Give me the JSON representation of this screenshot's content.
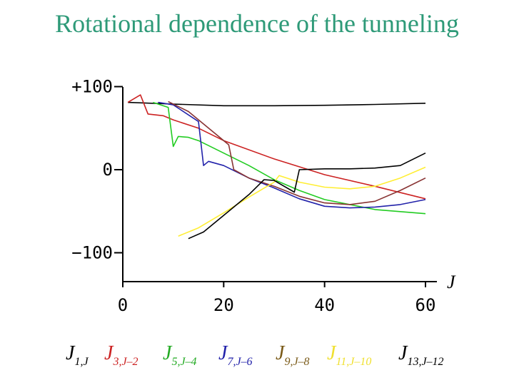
{
  "title": "Rotational dependence of the tunneling",
  "chart_data": {
    "type": "line",
    "xlabel": "J",
    "ylabel": "",
    "xlim": [
      0,
      60
    ],
    "ylim": [
      -135,
      110
    ],
    "x_ticks": [
      0,
      20,
      40,
      60
    ],
    "y_ticks": [
      100,
      0,
      -100
    ],
    "x_tick_labels": [
      "0",
      "20",
      "40",
      "60"
    ],
    "y_tick_labels": [
      "+100",
      "0",
      "−100"
    ],
    "grid": false,
    "series": [
      {
        "color": "#000000",
        "x": [
          1,
          10,
          20,
          30,
          40,
          50,
          60
        ],
        "y": [
          81,
          79,
          77,
          77,
          77.5,
          78.5,
          80
        ]
      },
      {
        "color": "#cc2222",
        "x": [
          1,
          3.5,
          5,
          8,
          10,
          15,
          20,
          30,
          40,
          50,
          60
        ],
        "y": [
          81,
          90,
          67,
          65,
          60,
          50,
          35,
          13,
          -6,
          -20,
          -35
        ]
      },
      {
        "color": "#22cc22",
        "x": [
          6,
          9,
          10,
          11,
          13,
          15,
          20,
          25,
          30,
          35,
          40,
          50,
          60
        ],
        "y": [
          81,
          75,
          28,
          40,
          39,
          35,
          20,
          5,
          -12,
          -25,
          -36,
          -48,
          -53
        ]
      },
      {
        "color": "#2222aa",
        "x": [
          7,
          10,
          15,
          16,
          17,
          20,
          25,
          30,
          35,
          40,
          45,
          50,
          55,
          60
        ],
        "y": [
          81,
          78,
          58,
          5,
          10,
          5,
          -10,
          -22,
          -35,
          -44,
          -46,
          -45,
          -42,
          -36
        ]
      },
      {
        "color": "#883333",
        "x": [
          9,
          13,
          16,
          19,
          21,
          22,
          25,
          30,
          35,
          40,
          45,
          50,
          55,
          60
        ],
        "y": [
          82,
          70,
          55,
          40,
          30,
          0,
          -10,
          -20,
          -32,
          -40,
          -42,
          -38,
          -25,
          -10
        ]
      },
      {
        "color": "#ffee33",
        "x": [
          11,
          15,
          20,
          25,
          30,
          31,
          35,
          40,
          45,
          50,
          55,
          60
        ],
        "y": [
          -80,
          -70,
          -52,
          -33,
          -15,
          -7,
          -15,
          -21,
          -23,
          -20,
          -10,
          3
        ]
      },
      {
        "color": "#000000",
        "x": [
          13,
          16,
          20,
          25,
          28,
          30,
          32,
          34,
          35,
          40,
          45,
          50,
          55,
          60
        ],
        "y": [
          -83,
          -75,
          -55,
          -30,
          -12,
          -13,
          -20,
          -27,
          0,
          1,
          1,
          2,
          5,
          20
        ]
      }
    ]
  },
  "legend": [
    {
      "main": "J",
      "sub": "1,J",
      "color": "#000000"
    },
    {
      "main": "J",
      "sub": "3,J–2",
      "color": "#cc2222"
    },
    {
      "main": "J",
      "sub": "5,J–4",
      "color": "#22aa22"
    },
    {
      "main": "J",
      "sub": "7,J–6",
      "color": "#2222aa"
    },
    {
      "main": "J",
      "sub": "9,J–8",
      "color": "#7a5a18"
    },
    {
      "main": "J",
      "sub": "11,J–10",
      "color": "#f0e030"
    },
    {
      "main": "J",
      "sub": "13,J–12",
      "color": "#000000"
    }
  ]
}
